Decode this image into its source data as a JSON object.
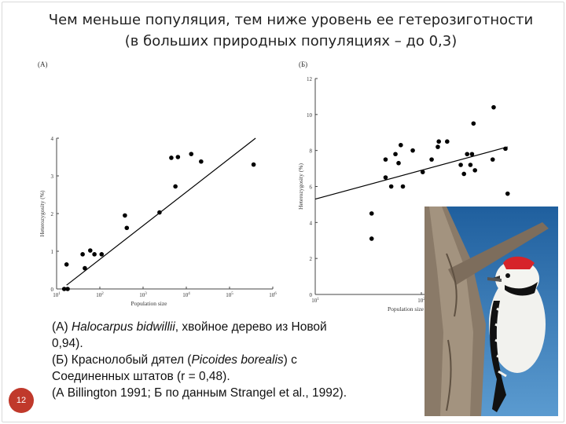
{
  "slide": {
    "title_line1": "Чем меньше популяция, тем ниже уровень ее гетерозиготности",
    "title_line2": "(в больших природных популяциях – до 0,3)",
    "page_number": "12"
  },
  "caption": {
    "a_prefix": "(А) ",
    "a_species": "Halocarpus bidwillii",
    "a_rest": ", хвойное дерево из Новой",
    "a_line2": "0,94).",
    "b_prefix": "(Б) Краснолобый дятел (",
    "b_species": "Picoides borealis",
    "b_rest": ") с",
    "b_line2": "Соединенных штатов (r = 0,48).",
    "source": "(А Billington 1991; Б по данным Strangel et al., 1992)."
  },
  "photo": {
    "subject": "woodpecker-on-tree",
    "sky_color": "#2f74b3",
    "bark_color": "#8a7a68"
  },
  "chart_data": [
    {
      "panel": "(A)",
      "type": "scatter",
      "xlabel": "Population size",
      "ylabel": "Heterozygosity (%)",
      "x_scale": "log",
      "xlim": [
        10,
        1000000
      ],
      "ylim": [
        0,
        4
      ],
      "x_ticks": [
        10,
        100,
        1000,
        10000,
        100000,
        1000000
      ],
      "x_tick_labels": [
        "10",
        "10",
        "10",
        "10",
        "10",
        "10"
      ],
      "x_tick_exponents": [
        "1",
        "2",
        "3",
        "4",
        "5",
        "6"
      ],
      "y_ticks": [
        0,
        1,
        2,
        3,
        4
      ],
      "y_tick_labels": [
        "0",
        "1",
        "2",
        "3",
        "4"
      ],
      "points": [
        [
          15,
          0.0
        ],
        [
          18,
          0.0
        ],
        [
          17,
          0.65
        ],
        [
          40,
          0.92
        ],
        [
          45,
          0.55
        ],
        [
          60,
          1.02
        ],
        [
          75,
          0.92
        ],
        [
          110,
          0.92
        ],
        [
          380,
          1.95
        ],
        [
          420,
          1.62
        ],
        [
          2400,
          2.03
        ],
        [
          4500,
          3.48
        ],
        [
          5600,
          2.72
        ],
        [
          6400,
          3.5
        ],
        [
          13000,
          3.58
        ],
        [
          22000,
          3.38
        ],
        [
          360000,
          3.3
        ]
      ],
      "trend_line": [
        [
          17,
          0.1
        ],
        [
          400000,
          4.0
        ]
      ],
      "colors": {
        "points": "#000000",
        "line": "#000000"
      }
    },
    {
      "panel": "(Б)",
      "type": "scatter",
      "xlabel": "Population size",
      "ylabel": "Heterozygosity (%)",
      "x_scale": "log",
      "xlim": [
        10,
        1000
      ],
      "ylim": [
        0,
        12
      ],
      "x_ticks": [
        10,
        100,
        1000
      ],
      "x_tick_labels": [
        "10",
        "10",
        "10"
      ],
      "x_tick_exponents": [
        "1",
        "2",
        "3"
      ],
      "y_ticks": [
        0,
        2,
        4,
        6,
        8,
        10,
        12
      ],
      "y_tick_labels": [
        "0",
        "2",
        "4",
        "6",
        "8",
        "10",
        "12"
      ],
      "points": [
        [
          34,
          4.5
        ],
        [
          34,
          3.1
        ],
        [
          46,
          7.5
        ],
        [
          46,
          6.5
        ],
        [
          52,
          6.0
        ],
        [
          57,
          7.8
        ],
        [
          61,
          7.3
        ],
        [
          64,
          8.3
        ],
        [
          67,
          6.0
        ],
        [
          83,
          8.0
        ],
        [
          103,
          6.8
        ],
        [
          125,
          7.5
        ],
        [
          143,
          8.2
        ],
        [
          146,
          8.5
        ],
        [
          175,
          8.5
        ],
        [
          235,
          7.2
        ],
        [
          252,
          6.7
        ],
        [
          270,
          7.8
        ],
        [
          290,
          7.2
        ],
        [
          300,
          7.8
        ],
        [
          310,
          9.5
        ],
        [
          320,
          6.9
        ],
        [
          470,
          7.5
        ],
        [
          480,
          10.4
        ],
        [
          620,
          8.1
        ],
        [
          650,
          5.6
        ]
      ],
      "trend_line": [
        [
          10,
          5.3
        ],
        [
          650,
          8.2
        ]
      ],
      "colors": {
        "points": "#000000",
        "line": "#000000"
      }
    }
  ]
}
